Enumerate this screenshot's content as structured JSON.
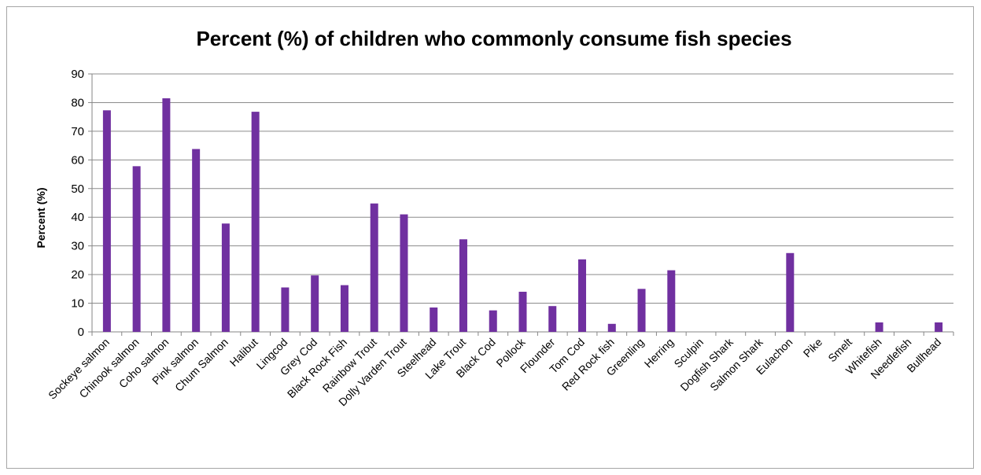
{
  "chart_data": {
    "type": "bar",
    "title": "Percent (%) of children who commonly consume fish species",
    "xlabel": "",
    "ylabel": "Percent (%)",
    "ylim": [
      0,
      90
    ],
    "ytick_step": 10,
    "grid": true,
    "legend": "none",
    "bar_color": "#7030a0",
    "categories": [
      "Sockeye salmon",
      "Chinook salmon",
      "Coho salmon",
      "Pink salmon",
      "Chum Salmon",
      "Halibut",
      "Lingcod",
      "Grey Cod",
      "Black Rock Fish",
      "Rainbow Trout",
      "Dolly Varden Trout",
      "Steelhead",
      "Lake Trout",
      "Black Cod",
      "Pollock",
      "Flounder",
      "Tom Cod",
      "Red Rock fish",
      "Greenling",
      "Herring",
      "Sculpin",
      "Dogfish Shark",
      "Salmon Shark",
      "Eulachon",
      "Pike",
      "Smelt",
      "Whitefish",
      "Needlefish",
      "Bullhead"
    ],
    "values": [
      77.3,
      57.8,
      81.5,
      63.8,
      37.8,
      76.8,
      15.5,
      19.7,
      16.3,
      44.8,
      41.0,
      8.5,
      32.3,
      7.5,
      14.0,
      9.0,
      25.3,
      2.8,
      15.0,
      21.5,
      0,
      0,
      0,
      27.5,
      0,
      0,
      3.3,
      0,
      3.3
    ]
  }
}
